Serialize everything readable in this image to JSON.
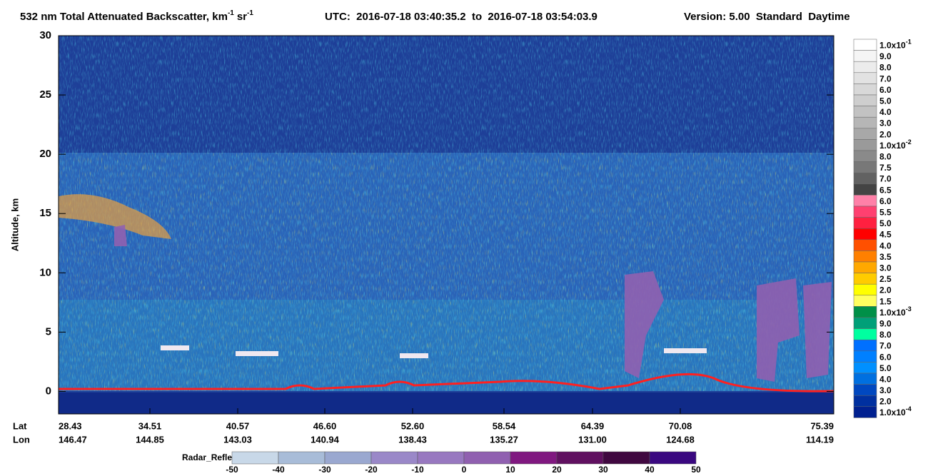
{
  "chart_data": {
    "type": "curtain",
    "title": {
      "product": "532 nm Total Attenuated Backscatter, km",
      "km_exp": "-1",
      "sr": "sr",
      "sr_exp": "-1",
      "time": "UTC:  2016-07-18 03:40:35.2  to  2016-07-18 03:54:03.9",
      "version": "Version: 5.00  Standard  Daytime"
    },
    "y_label": "Altitude, km",
    "ylim": [
      -1.9,
      30
    ],
    "yticks": [
      0,
      5,
      10,
      15,
      20,
      25,
      30
    ],
    "x_row_labels": [
      "Lat",
      "Lon"
    ],
    "lat": [
      "28.43",
      "34.51",
      "40.57",
      "46.60",
      "52.60",
      "58.54",
      "64.39",
      "70.08",
      "75.39"
    ],
    "lon": [
      "146.47",
      "144.85",
      "143.03",
      "140.94",
      "138.43",
      "135.27",
      "131.00",
      "124.68",
      "114.19"
    ],
    "colorbar": {
      "labels": [
        {
          "m": "1.0x10",
          "e": "-1"
        },
        "9.0",
        "8.0",
        "7.0",
        "6.0",
        "5.0",
        "4.0",
        "3.0",
        "2.0",
        {
          "m": "1.0x10",
          "e": "-2"
        },
        "8.0",
        "7.5",
        "7.0",
        "6.5",
        "6.0",
        "5.5",
        "5.0",
        "4.5",
        "4.0",
        "3.5",
        "3.0",
        "2.5",
        "2.0",
        "1.5",
        {
          "m": "1.0x10",
          "e": "-3"
        },
        "9.0",
        "8.0",
        "7.0",
        "6.0",
        "5.0",
        "4.0",
        "3.0",
        "2.0",
        {
          "m": "1.0x10",
          "e": "-4"
        }
      ],
      "colors": [
        "#ffffff",
        "#f5f5f5",
        "#ececec",
        "#e2e2e2",
        "#d8d8d8",
        "#cecece",
        "#c2c2c2",
        "#b6b6b6",
        "#a8a8a8",
        "#9a9a9a",
        "#8a8a8a",
        "#787878",
        "#626262",
        "#444444",
        "#ff80a8",
        "#ff4070",
        "#ff2040",
        "#ff0000",
        "#ff5000",
        "#ff8000",
        "#ffa800",
        "#ffcc00",
        "#ffff00",
        "#ffff60",
        "#009048",
        "#00a078",
        "#00ffa0",
        "#0070ff",
        "#0080ff",
        "#0090ff",
        "#0070e0",
        "#0048c0",
        "#0030a0",
        "#002090"
      ]
    },
    "radar": {
      "label": "Radar_Reflectivity",
      "ticks": [
        -50,
        -40,
        -30,
        -20,
        -10,
        0,
        10,
        20,
        30,
        40,
        50
      ],
      "colors": [
        "#c8d8e8",
        "#a8bcd8",
        "#9aa8d0",
        "#9a88c8",
        "#9878c0",
        "#9060b0",
        "#801880",
        "#601060",
        "#400840",
        "#3a0880"
      ]
    }
  }
}
